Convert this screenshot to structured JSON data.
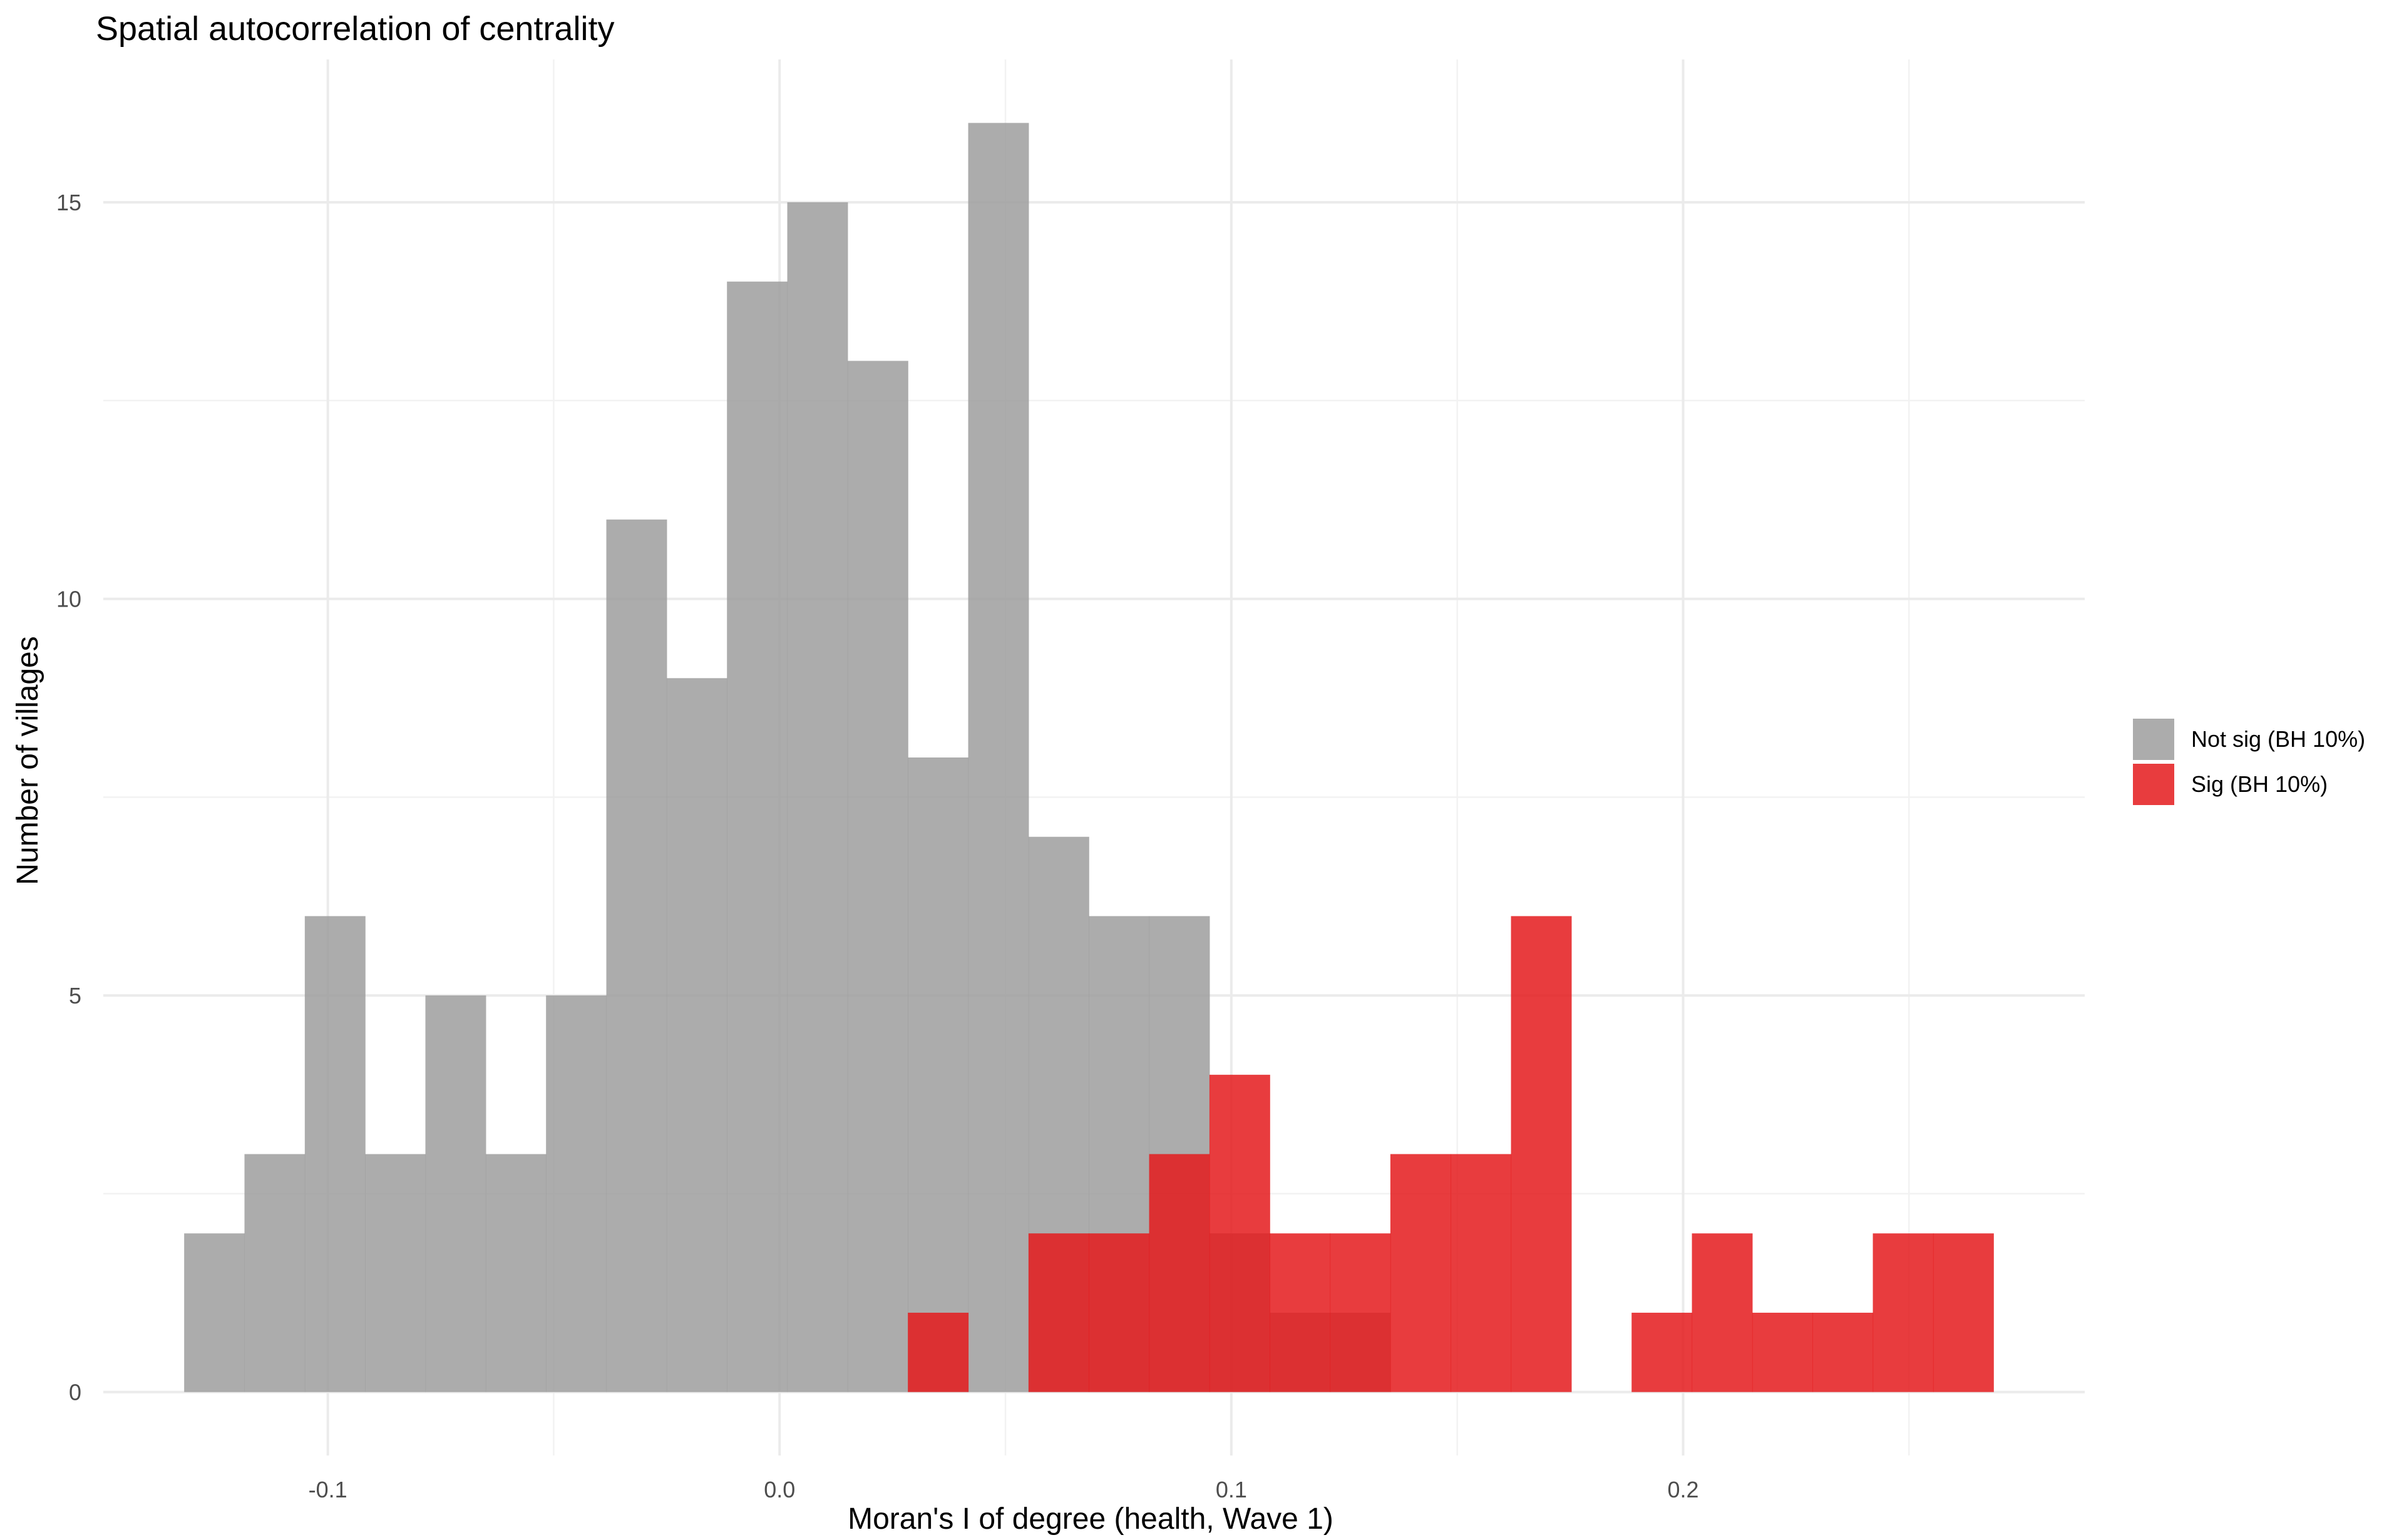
{
  "chart_data": {
    "type": "histogram",
    "title": "Spatial autocorrelation of centrality",
    "xlabel": "Moran's I of degree (health, Wave 1)",
    "ylabel": "Number of villages",
    "xlim": [
      -0.1497,
      0.2889
    ],
    "ylim": [
      -0.8,
      16.8
    ],
    "x_ticks": [
      -0.1,
      0.0,
      0.1,
      0.2
    ],
    "x_tick_labels": [
      "-0.1",
      "0.0",
      "0.1",
      "0.2"
    ],
    "y_ticks": [
      0,
      5,
      10,
      15
    ],
    "y_tick_labels": [
      "0",
      "5",
      "10",
      "15"
    ],
    "bin_width": 0.01335,
    "bin_start": -0.1318,
    "legend_position": "right",
    "series": [
      {
        "name": "Not sig (BH 10%)",
        "color": "#9E9E9E",
        "counts": [
          2,
          3,
          6,
          3,
          5,
          3,
          5,
          11,
          9,
          14,
          15,
          13,
          8,
          16,
          7,
          6,
          6,
          2,
          1,
          1,
          0,
          0,
          0,
          0,
          0,
          0,
          0,
          0,
          0,
          0,
          0,
          0
        ]
      },
      {
        "name": "Sig (BH 10%)",
        "color": "#E41A1C",
        "counts": [
          0,
          0,
          0,
          0,
          0,
          0,
          0,
          0,
          0,
          0,
          0,
          0,
          1,
          0,
          2,
          2,
          3,
          4,
          2,
          2,
          3,
          3,
          6,
          0,
          1,
          2,
          1,
          1,
          2,
          2,
          0,
          0
        ]
      }
    ]
  }
}
